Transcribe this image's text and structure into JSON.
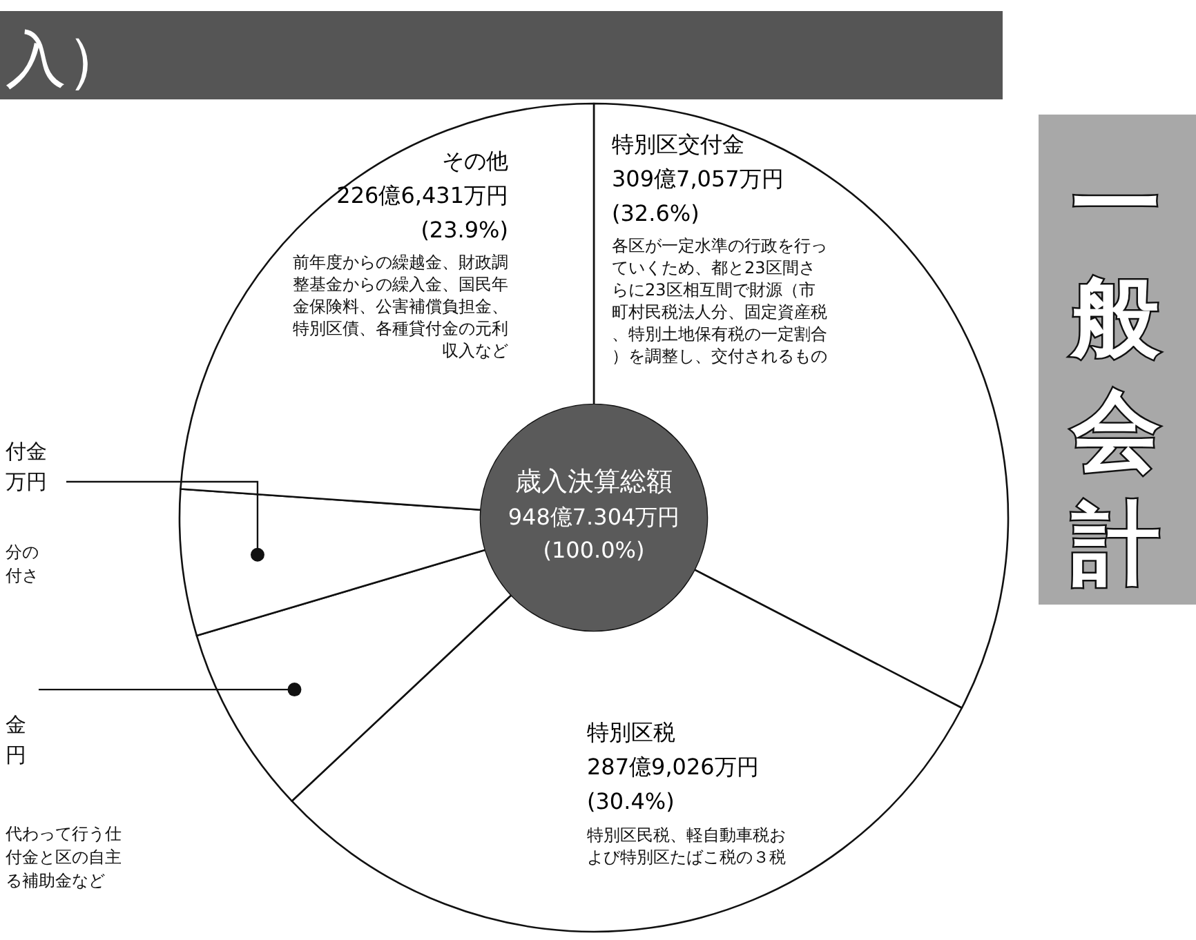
{
  "chart_data": {
    "type": "donut",
    "title": "入）",
    "categories": [
      "特別区交付金",
      "特別区税",
      null,
      null,
      "その他"
    ],
    "values": [
      32.6,
      30.4,
      7.4,
      5.7,
      23.9
    ],
    "colors": [
      "#ffffff",
      "#ffffff",
      "#ffffff",
      "#ffffff",
      "#ffffff"
    ],
    "value_labels": [
      "(32.6%)",
      "(30.4%)",
      null,
      null,
      "(23.9%)"
    ],
    "annotations": [
      "309億7,057万円",
      "各区が一定水準の行政を行っていくため、都と23区間さらに23区相互間で財源（市町村民税法人分、固定資産税、特別土地保有税の一定割合）を調整し、交付されるもの",
      "287億9,026万円",
      "特別区民税、軽自動車税および特別区たばこ税の３税",
      "226億6,431万円",
      "前年度からの繰越金、財政調整基金からの繰入金、国民年金保険料、公害補償負担金、特別区債、各種貸付金の元利収入など",
      "歳入決算総額",
      "948億7.304万円",
      "(100.0%)",
      "付金万円",
      "分の付さ",
      "金円",
      "代わって行う仕付金と区の自主る補助金など",
      "一般会計"
    ]
  }
}
